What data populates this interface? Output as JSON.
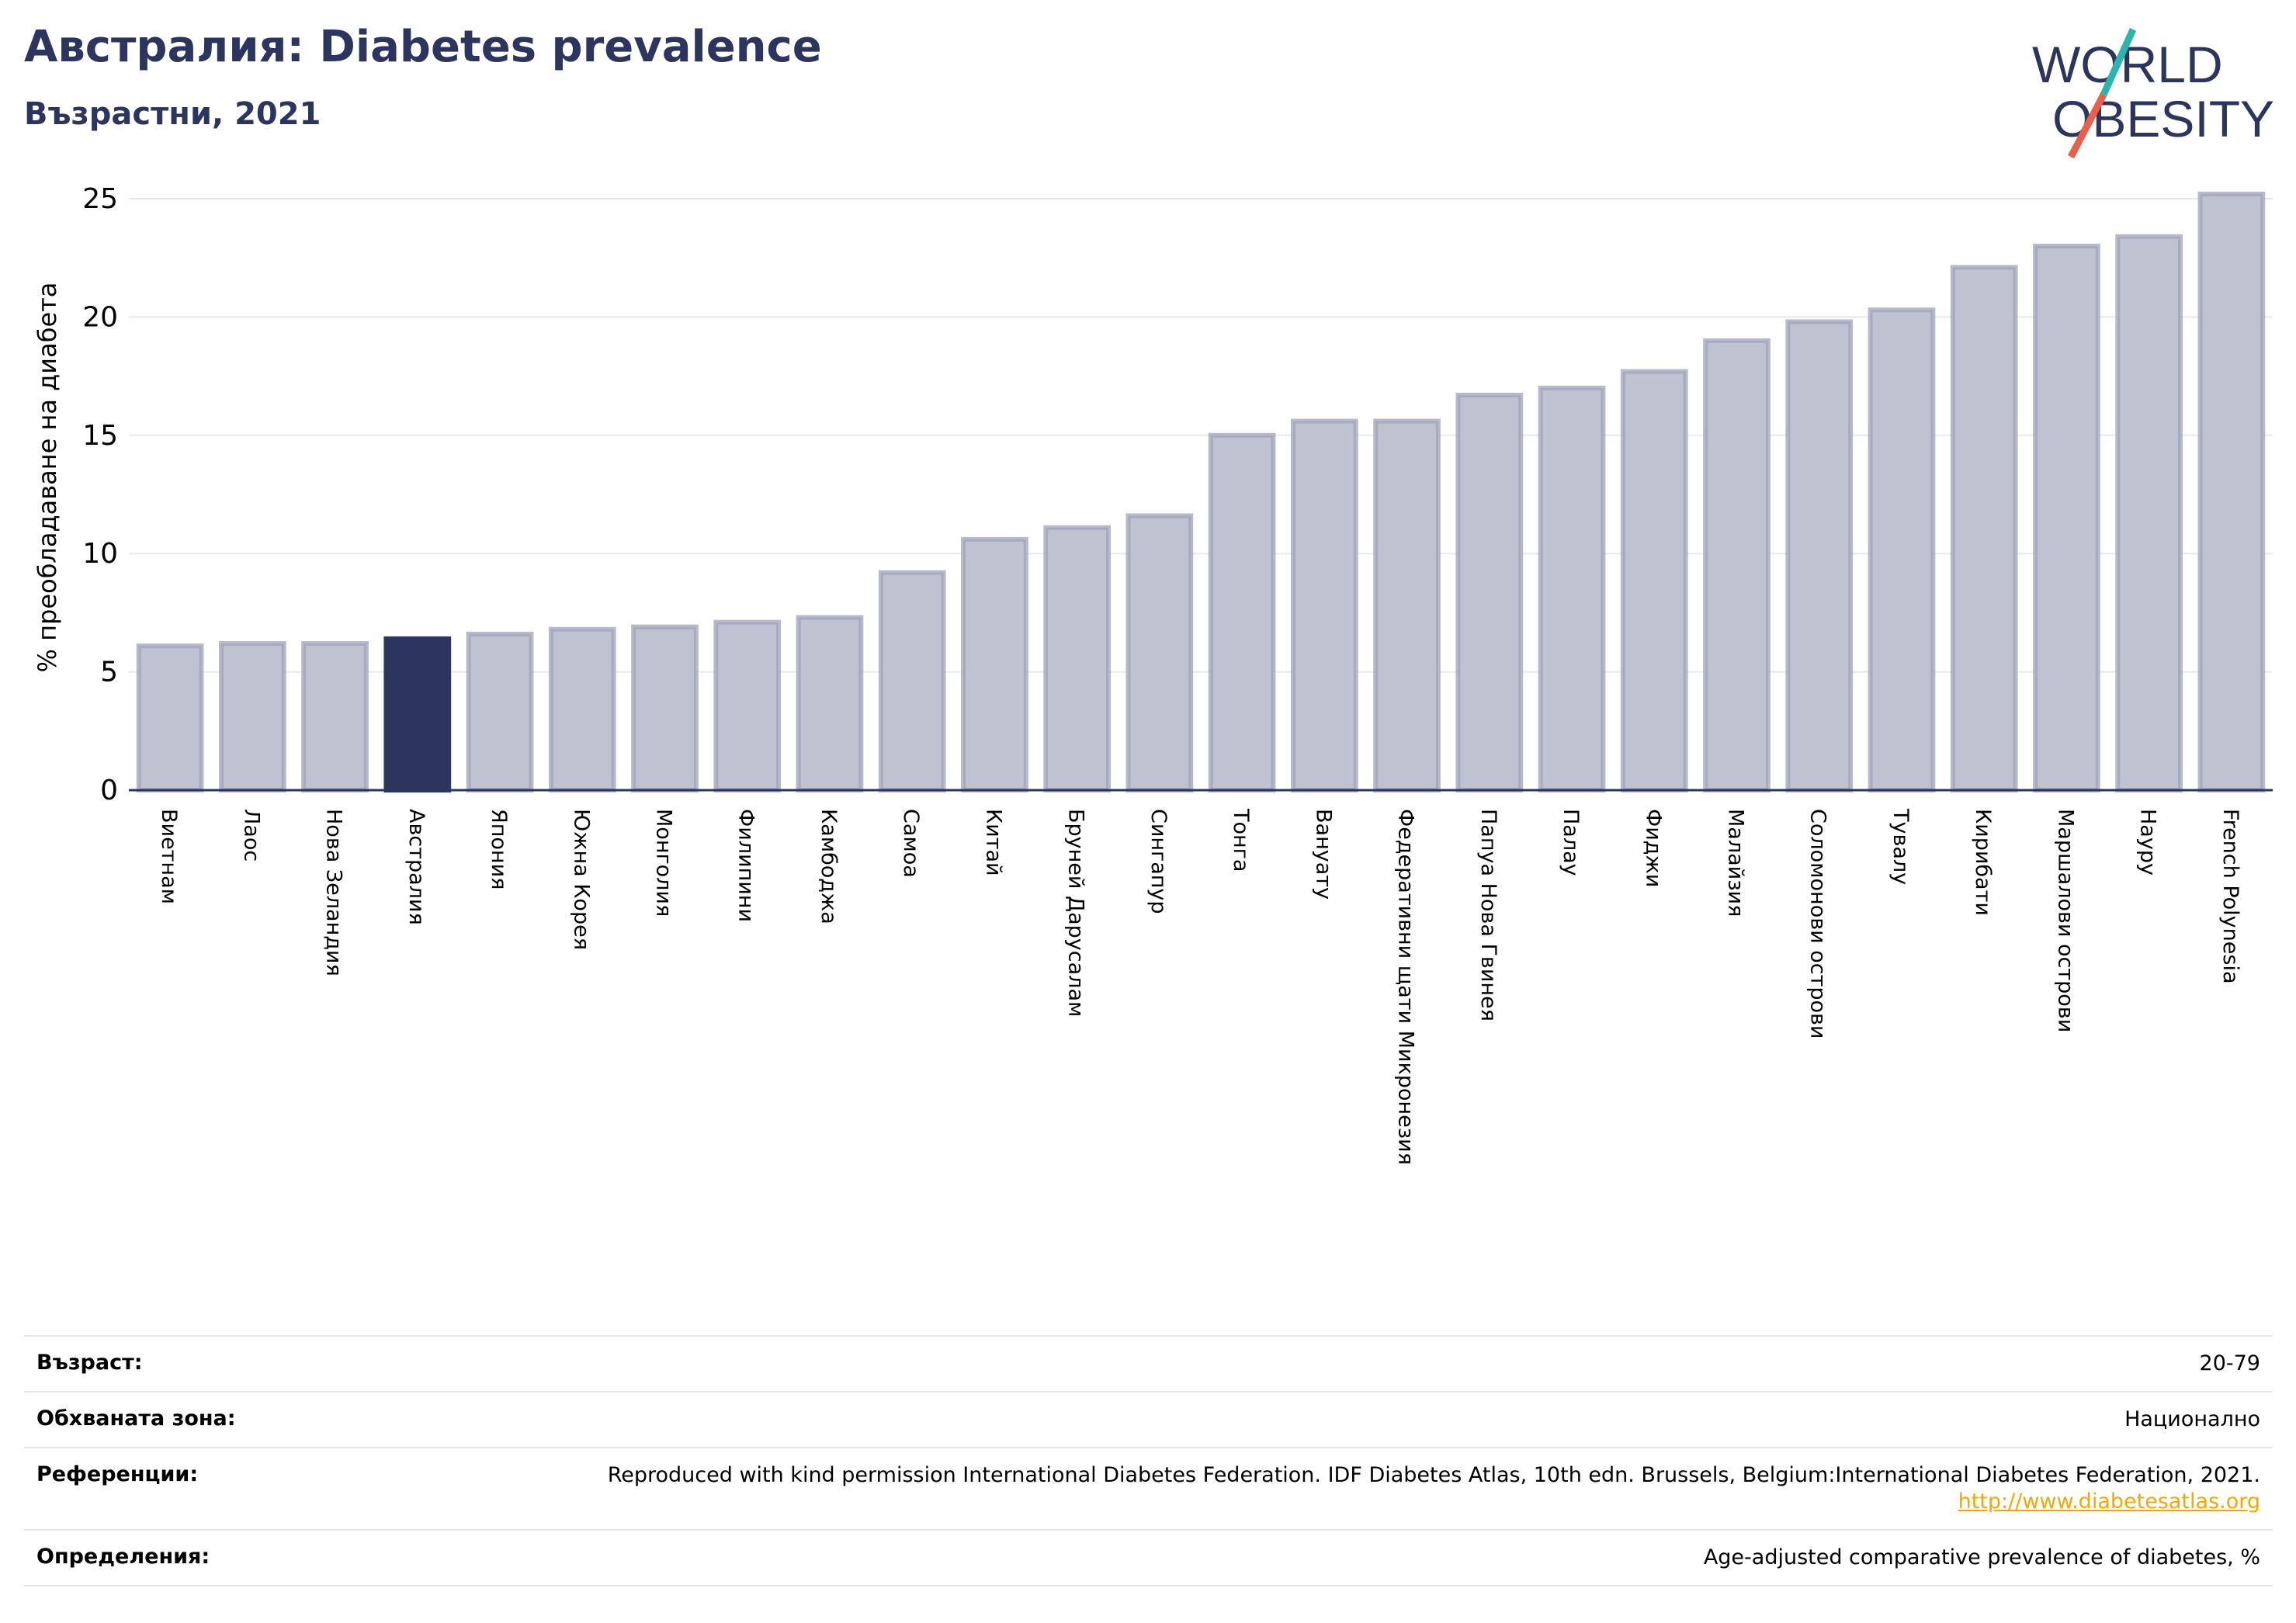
{
  "header": {
    "title": "Австралия: Diabetes prevalence",
    "subtitle": "Възрастни, 2021"
  },
  "logo": {
    "line1": "WORLD",
    "line2": "OBESITY",
    "colors": {
      "text": "#2b355e",
      "slash_top": "#2bb5ad",
      "slash_bottom": "#e8604c"
    }
  },
  "colors": {
    "bar": "#bfc2d0",
    "bar_stroke": "#9ea3b9",
    "highlight": "#2b355e",
    "grid": "#e6e8ef",
    "axis": "#2b355e"
  },
  "chart_data": {
    "type": "bar",
    "ylabel": "% преобладаване на диабета",
    "ylim": [
      0,
      25
    ],
    "yticks": [
      0,
      5,
      10,
      15,
      20,
      25
    ],
    "grid": true,
    "highlight_category": "Австралия",
    "categories": [
      "Виетнам",
      "Лаос",
      "Нова Зеландия",
      "Австралия",
      "Япония",
      "Южна Корея",
      "Монголия",
      "Филипини",
      "Камбоджа",
      "Самоа",
      "Китай",
      "Бруней Дарусалам",
      "Сингапур",
      "Тонга",
      "Вануату",
      "Федеративни щати Микронезия",
      "Папуа Нова Гвинея",
      "Палау",
      "Фиджи",
      "Малайзия",
      "Соломонови острови",
      "Тувалу",
      "Кирибати",
      "Маршалови острови",
      "Науру",
      "French Polynesia"
    ],
    "values": [
      6.1,
      6.2,
      6.2,
      6.4,
      6.6,
      6.8,
      6.9,
      7.1,
      7.3,
      9.2,
      10.6,
      11.1,
      11.6,
      15.0,
      15.6,
      15.6,
      16.7,
      17.0,
      17.7,
      19.0,
      19.8,
      20.3,
      22.1,
      23.0,
      23.4,
      25.2
    ]
  },
  "meta": {
    "rows": [
      {
        "label": "Възраст:",
        "value": "20-79"
      },
      {
        "label": "Обхваната зона:",
        "value": "Национално"
      },
      {
        "label": "Референции:",
        "value": "Reproduced with kind permission International Diabetes Federation.  IDF Diabetes Atlas, 10th edn. Brussels, Belgium:International Diabetes Federation, 2021.",
        "link": "http://www.diabetesatlas.org"
      },
      {
        "label": "Определения:",
        "value": "Age-adjusted comparative prevalence of diabetes, %"
      }
    ]
  }
}
